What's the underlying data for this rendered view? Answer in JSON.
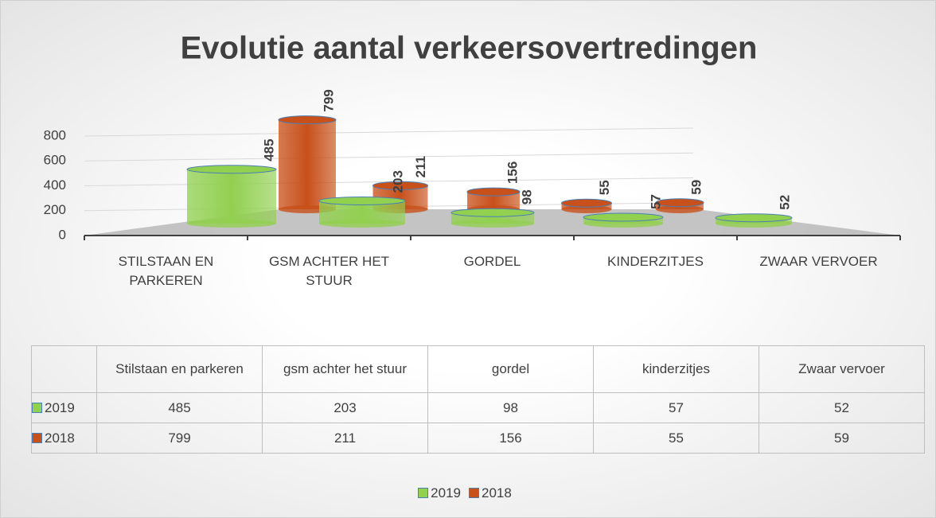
{
  "chart_data": {
    "type": "bar",
    "title": "Evolutie aantal verkeersovertredingen",
    "categories": [
      "STILSTAAN EN PARKEREN",
      "GSM ACHTER HET STUUR",
      "GORDEL",
      "KINDERZITJES",
      "ZWAAR VERVOER"
    ],
    "series": [
      {
        "name": "2019",
        "color": "#92d050",
        "values": [
          485,
          203,
          98,
          57,
          52
        ]
      },
      {
        "name": "2018",
        "color": "#c8501a",
        "values": [
          799,
          211,
          156,
          55,
          59
        ]
      }
    ],
    "ylim": [
      0,
      800
    ],
    "yticks": [
      0,
      200,
      400,
      600,
      800
    ],
    "grid": true,
    "data_table": {
      "categories": [
        "Stilstaan en parkeren",
        "gsm achter het stuur",
        "gordel",
        "kinderzitjes",
        "Zwaar vervoer"
      ]
    },
    "legend": "bottom"
  }
}
